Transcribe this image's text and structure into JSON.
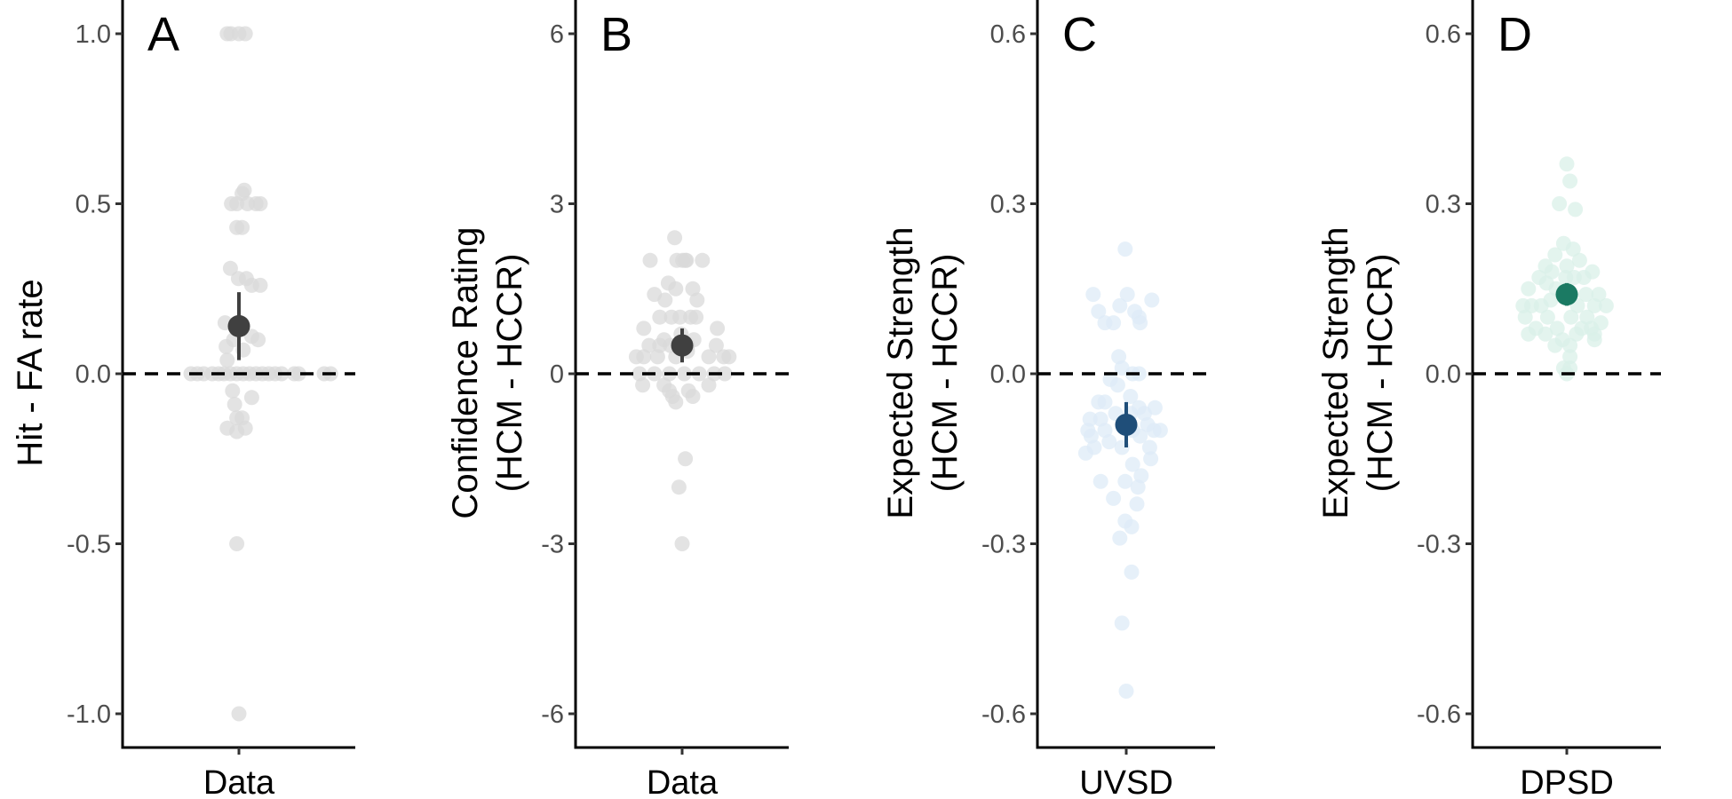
{
  "chart_data": [
    {
      "type": "scatter",
      "panel_label": "A",
      "ylabel": [
        "Hit - FA rate"
      ],
      "categories": [
        "Data"
      ],
      "ylim": [
        -1.1,
        1.1
      ],
      "yticks": [
        1.0,
        0.5,
        0.0,
        -0.5,
        -1.0
      ],
      "ytick_labels": [
        "1.0",
        "0.5",
        "0.0",
        "-0.5",
        "-1.0"
      ],
      "reference_line": 0,
      "point_color": "#d9d9d9",
      "summary_color": "#404040",
      "summary": {
        "mean": 0.14,
        "lower": 0.04,
        "upper": 0.24
      },
      "points": [
        [
          -0.11,
          1.0
        ],
        [
          -0.075,
          1.0
        ],
        [
          0.0,
          1.0
        ],
        [
          0.06,
          1.0
        ],
        [
          0.05,
          0.54
        ],
        [
          0.03,
          0.53
        ],
        [
          -0.07,
          0.5
        ],
        [
          -0.02,
          0.5
        ],
        [
          0.08,
          0.5
        ],
        [
          0.16,
          0.5
        ],
        [
          0.2,
          0.5
        ],
        [
          -0.02,
          0.43
        ],
        [
          0.03,
          0.43
        ],
        [
          -0.08,
          0.31
        ],
        [
          0.07,
          0.28
        ],
        [
          -0.005,
          0.28
        ],
        [
          0.12,
          0.26
        ],
        [
          0.2,
          0.26
        ],
        [
          -0.13,
          0.15
        ],
        [
          0.12,
          0.11
        ],
        [
          -0.05,
          0.1
        ],
        [
          0.18,
          0.1
        ],
        [
          -0.12,
          0.08
        ],
        [
          0.04,
          0.07
        ],
        [
          -0.11,
          0.04
        ],
        [
          -0.45,
          0.0
        ],
        [
          -0.39,
          0.0
        ],
        [
          -0.33,
          0.0
        ],
        [
          -0.25,
          0.0
        ],
        [
          -0.19,
          0.0
        ],
        [
          -0.14,
          0.0
        ],
        [
          -0.08,
          0.0
        ],
        [
          -0.02,
          0.0
        ],
        [
          0.04,
          0.0
        ],
        [
          0.1,
          0.0
        ],
        [
          0.16,
          0.0
        ],
        [
          0.22,
          0.0
        ],
        [
          0.28,
          0.0
        ],
        [
          0.34,
          0.0
        ],
        [
          0.4,
          0.0
        ],
        [
          0.52,
          0.0
        ],
        [
          0.56,
          0.0
        ],
        [
          0.8,
          0.0
        ],
        [
          0.86,
          0.0
        ],
        [
          -0.06,
          -0.05
        ],
        [
          0.12,
          -0.07
        ],
        [
          -0.04,
          -0.09
        ],
        [
          -0.02,
          -0.13
        ],
        [
          0.03,
          -0.13
        ],
        [
          -0.11,
          -0.16
        ],
        [
          0.06,
          -0.16
        ],
        [
          -0.02,
          -0.17
        ],
        [
          -0.02,
          -0.5
        ],
        [
          0.0,
          -1.0
        ]
      ]
    },
    {
      "type": "scatter",
      "panel_label": "B",
      "ylabel": [
        "Confidence Rating",
        "(HCM - HCCR)"
      ],
      "categories": [
        "Data"
      ],
      "ylim": [
        -6.6,
        6.6
      ],
      "yticks": [
        6,
        3,
        0,
        -3,
        -6
      ],
      "ytick_labels": [
        "6",
        "3",
        "0",
        "-3",
        "-6"
      ],
      "reference_line": 0,
      "point_color": "#d9d9d9",
      "summary_color": "#404040",
      "summary": {
        "mean": 0.5,
        "lower": 0.2,
        "upper": 0.8
      },
      "points": [
        [
          -0.07,
          2.4
        ],
        [
          -0.05,
          2.0
        ],
        [
          0.005,
          2.0
        ],
        [
          0.03,
          2.0
        ],
        [
          0.04,
          2.0
        ],
        [
          0.19,
          2.0
        ],
        [
          -0.3,
          2.0
        ],
        [
          -0.13,
          1.6
        ],
        [
          -0.06,
          1.5
        ],
        [
          0.1,
          1.5
        ],
        [
          -0.26,
          1.4
        ],
        [
          0.14,
          1.3
        ],
        [
          -0.16,
          1.3
        ],
        [
          -0.21,
          1.0
        ],
        [
          -0.1,
          1.0
        ],
        [
          -0.02,
          1.0
        ],
        [
          0.08,
          1.0
        ],
        [
          0.13,
          1.0
        ],
        [
          -0.36,
          0.8
        ],
        [
          0.33,
          0.8
        ],
        [
          -0.01,
          0.7
        ],
        [
          -0.17,
          0.6
        ],
        [
          0.11,
          0.6
        ],
        [
          0.05,
          0.4
        ],
        [
          -0.31,
          0.5
        ],
        [
          -0.21,
          0.5
        ],
        [
          -0.11,
          0.5
        ],
        [
          0.05,
          0.5
        ],
        [
          0.32,
          0.5
        ],
        [
          -0.43,
          0.3
        ],
        [
          -0.36,
          0.3
        ],
        [
          -0.23,
          0.3
        ],
        [
          -0.06,
          0.3
        ],
        [
          0.25,
          0.3
        ],
        [
          0.39,
          0.3
        ],
        [
          0.44,
          0.3
        ],
        [
          -0.4,
          0.0
        ],
        [
          -0.26,
          0.0
        ],
        [
          -0.12,
          0.0
        ],
        [
          0.02,
          0.0
        ],
        [
          0.16,
          0.0
        ],
        [
          0.3,
          0.0
        ],
        [
          0.4,
          0.0
        ],
        [
          -0.17,
          -0.2
        ],
        [
          -0.12,
          -0.3
        ],
        [
          0.06,
          -0.3
        ],
        [
          0.25,
          -0.2
        ],
        [
          -0.37,
          -0.2
        ],
        [
          -0.09,
          -0.4
        ],
        [
          0.1,
          -0.4
        ],
        [
          -0.06,
          -0.5
        ],
        [
          0.03,
          -1.5
        ],
        [
          -0.03,
          -2.0
        ],
        [
          0.0,
          -3.0
        ]
      ]
    },
    {
      "type": "scatter",
      "panel_label": "C",
      "ylabel": [
        "Expected Strength",
        "(HCM - HCCR)"
      ],
      "categories": [
        "UVSD"
      ],
      "ylim": [
        -0.66,
        0.66
      ],
      "yticks": [
        0.6,
        0.3,
        0.0,
        -0.3,
        -0.6
      ],
      "ytick_labels": [
        "0.6",
        "0.3",
        "0.0",
        "-0.3",
        "-0.6"
      ],
      "reference_line": 0,
      "point_color": "#deebf7",
      "summary_color": "#1f4e79",
      "summary": {
        "mean": -0.09,
        "lower": -0.13,
        "upper": -0.05
      },
      "points": [
        [
          -0.01,
          0.22
        ],
        [
          -0.31,
          0.14
        ],
        [
          0.01,
          0.14
        ],
        [
          0.24,
          0.13
        ],
        [
          -0.26,
          0.11
        ],
        [
          -0.06,
          0.12
        ],
        [
          0.08,
          0.11
        ],
        [
          0.12,
          0.1
        ],
        [
          -0.2,
          0.09
        ],
        [
          -0.12,
          0.09
        ],
        [
          0.13,
          0.09
        ],
        [
          -0.07,
          0.03
        ],
        [
          -0.04,
          0.01
        ],
        [
          0.06,
          0.0
        ],
        [
          0.12,
          0.0
        ],
        [
          -0.15,
          -0.01
        ],
        [
          -0.08,
          -0.02
        ],
        [
          0.04,
          -0.04
        ],
        [
          -0.26,
          -0.05
        ],
        [
          -0.2,
          -0.05
        ],
        [
          0.12,
          -0.06
        ],
        [
          -0.1,
          -0.07
        ],
        [
          0.04,
          -0.07
        ],
        [
          0.27,
          -0.06
        ],
        [
          0.17,
          -0.07
        ],
        [
          -0.24,
          -0.08
        ],
        [
          -0.34,
          -0.08
        ],
        [
          -0.33,
          -0.11
        ],
        [
          0.2,
          -0.09
        ],
        [
          -0.2,
          -0.1
        ],
        [
          -0.16,
          -0.12
        ],
        [
          0.06,
          -0.1
        ],
        [
          0.26,
          -0.1
        ],
        [
          -0.3,
          -0.13
        ],
        [
          -0.36,
          -0.1
        ],
        [
          0.13,
          -0.11
        ],
        [
          0.22,
          -0.13
        ],
        [
          0.32,
          -0.1
        ],
        [
          -0.38,
          -0.14
        ],
        [
          -0.04,
          -0.13
        ],
        [
          0.06,
          -0.16
        ],
        [
          0.23,
          -0.15
        ],
        [
          0.14,
          -0.18
        ],
        [
          -0.24,
          -0.19
        ],
        [
          -0.01,
          -0.19
        ],
        [
          0.11,
          -0.2
        ],
        [
          -0.12,
          -0.22
        ],
        [
          0.1,
          -0.23
        ],
        [
          -0.01,
          -0.26
        ],
        [
          0.05,
          -0.27
        ],
        [
          -0.06,
          -0.29
        ],
        [
          0.05,
          -0.35
        ],
        [
          -0.04,
          -0.44
        ],
        [
          0.0,
          -0.56
        ]
      ]
    },
    {
      "type": "scatter",
      "panel_label": "D",
      "ylabel": [
        "Expected Strength",
        "(HCM - HCCR)"
      ],
      "categories": [
        "DPSD"
      ],
      "ylim": [
        -0.66,
        0.66
      ],
      "yticks": [
        0.6,
        0.3,
        0.0,
        -0.3,
        -0.6
      ],
      "ytick_labels": [
        "0.6",
        "0.3",
        "0.0",
        "-0.3",
        "-0.6"
      ],
      "reference_line": 0,
      "point_color": "#d9f0e8",
      "summary_color": "#1b7a63",
      "summary": {
        "mean": 0.14,
        "lower": 0.12,
        "upper": 0.16
      },
      "points": [
        [
          0.0,
          0.37
        ],
        [
          0.03,
          0.34
        ],
        [
          -0.07,
          0.3
        ],
        [
          0.08,
          0.29
        ],
        [
          -0.03,
          0.23
        ],
        [
          0.06,
          0.22
        ],
        [
          -0.11,
          0.21
        ],
        [
          0.12,
          0.2
        ],
        [
          -0.2,
          0.19
        ],
        [
          0.0,
          0.19
        ],
        [
          -0.14,
          0.18
        ],
        [
          0.24,
          0.18
        ],
        [
          -0.26,
          0.17
        ],
        [
          -0.01,
          0.17
        ],
        [
          0.07,
          0.17
        ],
        [
          0.16,
          0.17
        ],
        [
          -0.36,
          0.15
        ],
        [
          -0.19,
          0.16
        ],
        [
          -0.1,
          0.15
        ],
        [
          0.3,
          0.14
        ],
        [
          -0.04,
          0.14
        ],
        [
          0.04,
          0.14
        ],
        [
          0.18,
          0.14
        ],
        [
          -0.41,
          0.12
        ],
        [
          -0.33,
          0.12
        ],
        [
          -0.24,
          0.12
        ],
        [
          -0.15,
          0.13
        ],
        [
          0.1,
          0.12
        ],
        [
          0.26,
          0.12
        ],
        [
          0.37,
          0.12
        ],
        [
          -0.39,
          0.1
        ],
        [
          -0.18,
          0.1
        ],
        [
          0.04,
          0.1
        ],
        [
          0.19,
          0.1
        ],
        [
          0.32,
          0.09
        ],
        [
          -0.29,
          0.08
        ],
        [
          -0.09,
          0.08
        ],
        [
          0.14,
          0.08
        ],
        [
          0.23,
          0.08
        ],
        [
          -0.36,
          0.07
        ],
        [
          -0.2,
          0.07
        ],
        [
          0.09,
          0.07
        ],
        [
          0.26,
          0.07
        ],
        [
          -0.11,
          0.05
        ],
        [
          -0.04,
          0.06
        ],
        [
          0.03,
          0.05
        ],
        [
          0.26,
          0.06
        ],
        [
          0.03,
          0.03
        ],
        [
          0.03,
          0.01
        ],
        [
          -0.03,
          0.01
        ],
        [
          0.0,
          0.0
        ]
      ]
    }
  ]
}
